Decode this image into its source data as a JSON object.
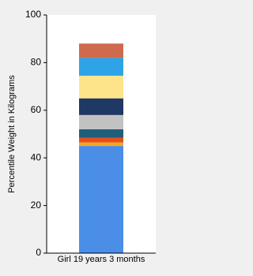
{
  "chart_data": {
    "type": "stacked_bar",
    "ylabel": "Percentile Weight in Kilograms",
    "categories": [
      "Girl 19 years 3 months"
    ],
    "series": [
      {
        "color": "#4a8ee8",
        "values": [
          45
        ]
      },
      {
        "color": "#f5a623",
        "values": [
          1.5
        ]
      },
      {
        "color": "#e4501c",
        "values": [
          2
        ]
      },
      {
        "color": "#1f5f7a",
        "values": [
          3.5
        ]
      },
      {
        "color": "#c2c2c2",
        "values": [
          6
        ]
      },
      {
        "color": "#1f3864",
        "values": [
          7
        ]
      },
      {
        "color": "#fde38a",
        "values": [
          9.5
        ]
      },
      {
        "color": "#2ea3e8",
        "values": [
          7.5
        ]
      },
      {
        "color": "#cf6a4d",
        "values": [
          6
        ]
      }
    ],
    "ylim": [
      0,
      100
    ],
    "yticks": [
      0,
      20,
      40,
      60,
      80,
      100
    ]
  }
}
